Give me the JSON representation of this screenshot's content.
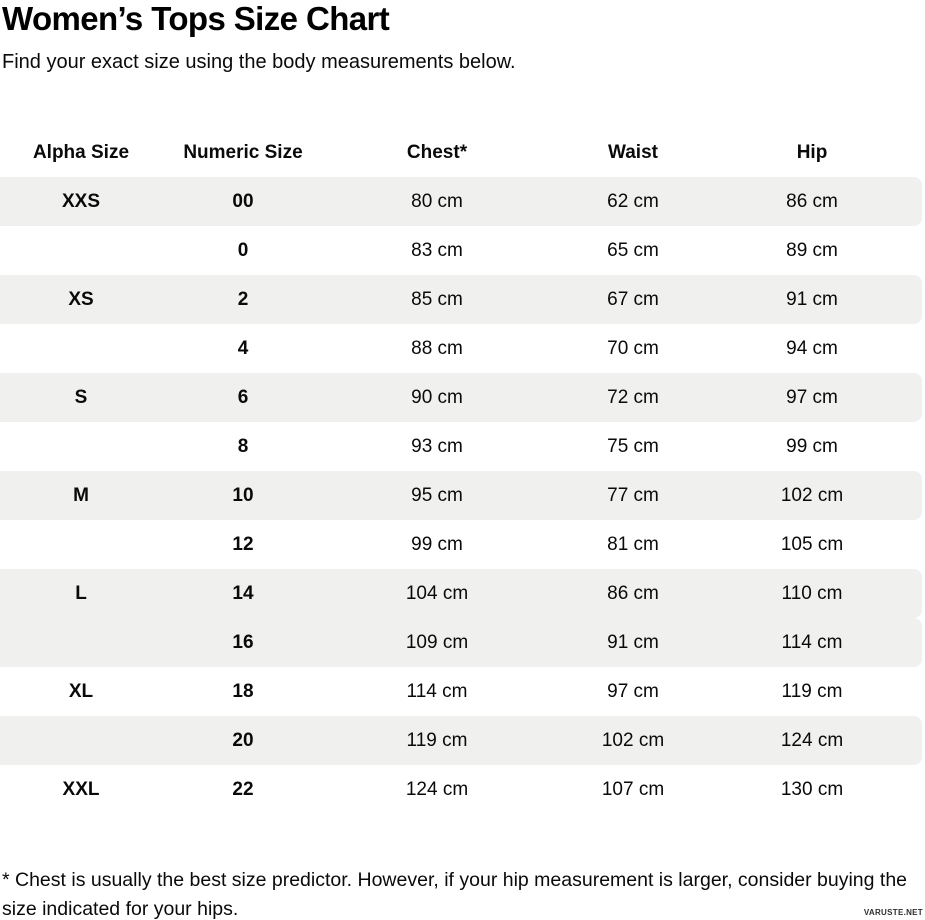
{
  "header": {
    "title": "Women’s Tops Size Chart",
    "subtitle": "Find your exact size using the body measurements below."
  },
  "chart_data": {
    "type": "table",
    "title": "Women’s Tops Size Chart",
    "columns": [
      "Alpha Size",
      "Numeric Size",
      "Chest*",
      "Waist",
      "Hip"
    ],
    "rows": [
      [
        "XXS",
        "00",
        "80 cm",
        "62 cm",
        "86 cm"
      ],
      [
        "",
        "0",
        "83 cm",
        "65 cm",
        "89 cm"
      ],
      [
        "XS",
        "2",
        "85 cm",
        "67 cm",
        "91 cm"
      ],
      [
        "",
        "4",
        "88 cm",
        "70 cm",
        "94 cm"
      ],
      [
        "S",
        "6",
        "90 cm",
        "72 cm",
        "97 cm"
      ],
      [
        "",
        "8",
        "93 cm",
        "75 cm",
        "99 cm"
      ],
      [
        "M",
        "10",
        "95 cm",
        "77 cm",
        "102 cm"
      ],
      [
        "",
        "12",
        "99 cm",
        "81 cm",
        "105 cm"
      ],
      [
        "L",
        "14",
        "104 cm",
        "86 cm",
        "110 cm"
      ],
      [
        "",
        "16",
        "109 cm",
        "91 cm",
        "114 cm"
      ],
      [
        "XL",
        "18",
        "114 cm",
        "97 cm",
        "119 cm"
      ],
      [
        "",
        "20",
        "119 cm",
        "102 cm",
        "124 cm"
      ],
      [
        "XXL",
        "22",
        "124 cm",
        "107 cm",
        "130 cm"
      ]
    ],
    "shaded_row_indexes": [
      0,
      2,
      4,
      6,
      8,
      9,
      11
    ],
    "shading_color": "#f0f0ee",
    "legend": "none",
    "grid": false
  },
  "footer": {
    "footnote": "* Chest is usually the best size predictor. However, if your hip measurement is larger, consider buying the size indicated for your hips.",
    "watermark": "VARUSTE.NET"
  }
}
